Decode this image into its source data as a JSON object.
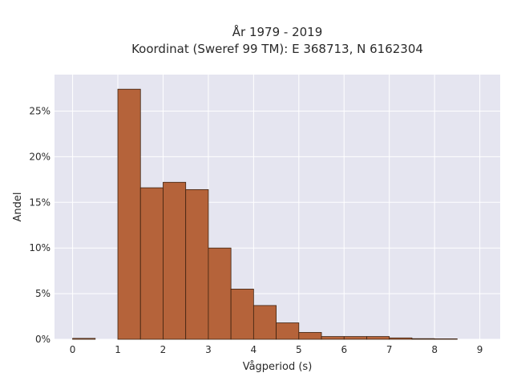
{
  "chart_data": {
    "type": "bar",
    "title_lines": [
      "År 1979 - 2019",
      "Koordinat (Sweref 99 TM): E 368713, N 6162304"
    ],
    "xlabel": "Vågperiod (s)",
    "ylabel": "Andel",
    "xlim": [
      -0.4,
      9.45
    ],
    "ylim": [
      0,
      0.29
    ],
    "x_ticks": [
      0,
      1,
      2,
      3,
      4,
      5,
      6,
      7,
      8,
      9
    ],
    "y_ticks": [
      0,
      0.05,
      0.1,
      0.15,
      0.2,
      0.25
    ],
    "y_tick_labels": [
      "0%",
      "5%",
      "10%",
      "15%",
      "20%",
      "25%"
    ],
    "grid": true,
    "bin_width": 0.5,
    "bins": [
      {
        "x0": 0.0,
        "x1": 0.5,
        "value": 0.001
      },
      {
        "x0": 0.5,
        "x1": 1.0,
        "value": 0.0
      },
      {
        "x0": 1.0,
        "x1": 1.5,
        "value": 0.274
      },
      {
        "x0": 1.5,
        "x1": 2.0,
        "value": 0.166
      },
      {
        "x0": 2.0,
        "x1": 2.5,
        "value": 0.172
      },
      {
        "x0": 2.5,
        "x1": 3.0,
        "value": 0.164
      },
      {
        "x0": 3.0,
        "x1": 3.5,
        "value": 0.1
      },
      {
        "x0": 3.5,
        "x1": 4.0,
        "value": 0.055
      },
      {
        "x0": 4.0,
        "x1": 4.5,
        "value": 0.037
      },
      {
        "x0": 4.5,
        "x1": 5.0,
        "value": 0.018
      },
      {
        "x0": 5.0,
        "x1": 5.5,
        "value": 0.0075
      },
      {
        "x0": 5.5,
        "x1": 6.0,
        "value": 0.003
      },
      {
        "x0": 6.0,
        "x1": 6.5,
        "value": 0.003
      },
      {
        "x0": 6.5,
        "x1": 7.0,
        "value": 0.003
      },
      {
        "x0": 7.0,
        "x1": 7.5,
        "value": 0.0015
      },
      {
        "x0": 7.5,
        "x1": 8.0,
        "value": 0.0007
      },
      {
        "x0": 8.0,
        "x1": 8.5,
        "value": 0.0005
      },
      {
        "x0": 8.5,
        "x1": 9.0,
        "value": 0.0
      }
    ],
    "colors": {
      "bar_fill": "#b5633a",
      "bar_stroke": "#3d2210",
      "plot_bg": "#e5e5f0",
      "grid": "#ffffff"
    }
  }
}
